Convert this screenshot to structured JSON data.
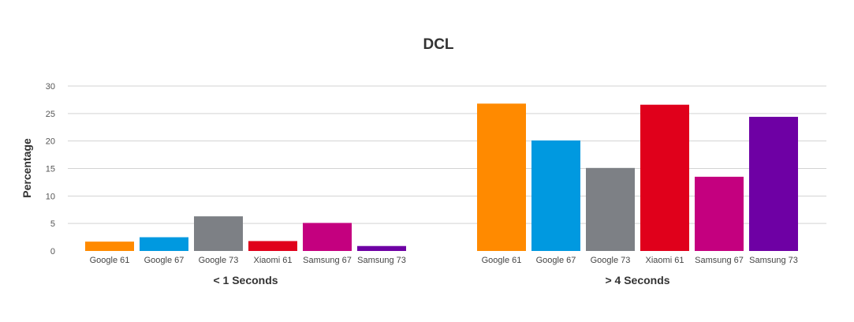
{
  "chart_data": {
    "type": "bar",
    "title": "DCL",
    "ylabel": "Percentage",
    "ylim": [
      0,
      30
    ],
    "yticks": [
      0,
      5,
      10,
      15,
      20,
      25,
      30
    ],
    "grid": true,
    "legend": "none",
    "categories": [
      "Google 61",
      "Google 67",
      "Google 73",
      "Xiaomi 61",
      "Samsung 67",
      "Samsung 73"
    ],
    "colors": [
      "#ff8a00",
      "#0099e0",
      "#7d8085",
      "#e0001b",
      "#c4007f",
      "#6e00a4"
    ],
    "groups": [
      {
        "label": "< 1 Seconds",
        "values": [
          1.7,
          2.5,
          6.3,
          1.8,
          5.1,
          0.9
        ]
      },
      {
        "label": "> 4 Seconds",
        "values": [
          26.8,
          20.1,
          15.1,
          26.6,
          13.5,
          24.4
        ]
      }
    ]
  }
}
